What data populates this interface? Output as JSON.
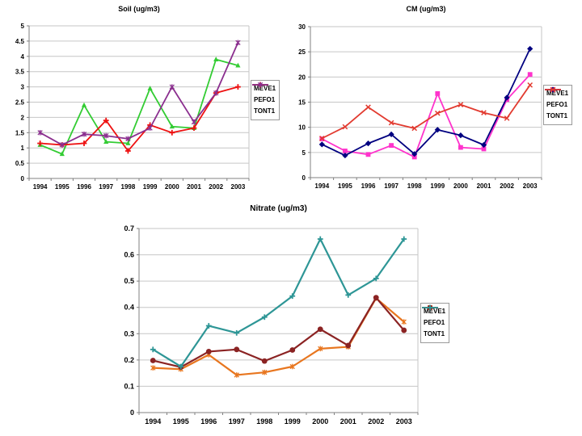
{
  "page": {
    "background": "#ffffff"
  },
  "chart_data": [
    {
      "id": "soil",
      "type": "line",
      "title": "Soil (ug/m3)",
      "categories": [
        "1994",
        "1995",
        "1996",
        "1997",
        "1998",
        "1999",
        "2000",
        "2001",
        "2002",
        "2003"
      ],
      "ylim": [
        0,
        5
      ],
      "yticks": [
        0,
        0.5,
        1,
        1.5,
        2,
        2.5,
        3,
        3.5,
        4,
        4.5,
        5
      ],
      "ytick_labels": [
        "0",
        "0.5",
        "1",
        "1.5",
        "2",
        "2.5",
        "3",
        "3.5",
        "4",
        "4.5",
        "5"
      ],
      "grid": true,
      "legend_position": "right",
      "series": [
        {
          "name": "MEVE1",
          "color": "#33CC33",
          "marker": "triangle",
          "values": [
            1.1,
            0.8,
            2.4,
            1.2,
            1.15,
            2.95,
            1.7,
            1.65,
            3.9,
            3.7
          ]
        },
        {
          "name": "PEFO1",
          "color": "#EE1111",
          "marker": "plus",
          "values": [
            1.15,
            1.1,
            1.15,
            1.9,
            0.9,
            1.75,
            1.5,
            1.65,
            2.8,
            3.0
          ]
        },
        {
          "name": "TONT1",
          "color": "#8B2F8F",
          "marker": "star",
          "values": [
            1.5,
            1.1,
            1.45,
            1.4,
            1.3,
            1.65,
            3.0,
            1.85,
            2.8,
            4.45
          ]
        }
      ]
    },
    {
      "id": "cm",
      "type": "line",
      "title": "CM (ug/m3)",
      "categories": [
        "1994",
        "1995",
        "1996",
        "1997",
        "1998",
        "1999",
        "2000",
        "2001",
        "2002",
        "2003"
      ],
      "ylim": [
        0,
        30
      ],
      "yticks": [
        0,
        5,
        10,
        15,
        20,
        25,
        30
      ],
      "ytick_labels": [
        "0",
        "5",
        "10",
        "15",
        "20",
        "25",
        "30"
      ],
      "grid": true,
      "legend_position": "right",
      "series": [
        {
          "name": "MEVE1",
          "color": "#FF33CC",
          "marker": "square",
          "values": [
            7.7,
            5.3,
            4.6,
            6.4,
            4.1,
            16.7,
            6.0,
            5.7,
            15.5,
            20.5
          ]
        },
        {
          "name": "PEFO1",
          "color": "#000080",
          "marker": "diamond",
          "values": [
            6.6,
            4.4,
            6.8,
            8.6,
            4.7,
            9.5,
            8.4,
            6.5,
            15.9,
            25.6
          ]
        },
        {
          "name": "TONT1",
          "color": "#E23B30",
          "marker": "x",
          "values": [
            7.8,
            10.1,
            14.0,
            10.9,
            9.8,
            12.8,
            14.5,
            12.9,
            11.8,
            18.4
          ]
        }
      ]
    },
    {
      "id": "nitrate",
      "type": "line",
      "title": "Nitrate (ug/m3)",
      "categories": [
        "1994",
        "1995",
        "1996",
        "1997",
        "1998",
        "1999",
        "2000",
        "2001",
        "2002",
        "2003"
      ],
      "ylim": [
        0,
        0.7
      ],
      "yticks": [
        0,
        0.1,
        0.2,
        0.3,
        0.4,
        0.5,
        0.6,
        0.7
      ],
      "ytick_labels": [
        "0",
        "0.1",
        "0.2",
        "0.3",
        "0.4",
        "0.5",
        "0.6",
        "0.7"
      ],
      "grid": true,
      "legend_position": "right",
      "series": [
        {
          "name": "MEVE1",
          "color": "#E8761F",
          "marker": "star",
          "values": [
            0.17,
            0.165,
            0.22,
            0.143,
            0.153,
            0.175,
            0.243,
            0.25,
            0.435,
            0.345
          ]
        },
        {
          "name": "PEFO1",
          "color": "#8B2323",
          "marker": "circle",
          "values": [
            0.198,
            0.173,
            0.232,
            0.24,
            0.196,
            0.238,
            0.317,
            0.255,
            0.437,
            0.313
          ]
        },
        {
          "name": "TONT1",
          "color": "#2E9696",
          "marker": "plus",
          "values": [
            0.24,
            0.175,
            0.33,
            0.303,
            0.363,
            0.443,
            0.66,
            0.447,
            0.51,
            0.66
          ]
        }
      ]
    }
  ]
}
